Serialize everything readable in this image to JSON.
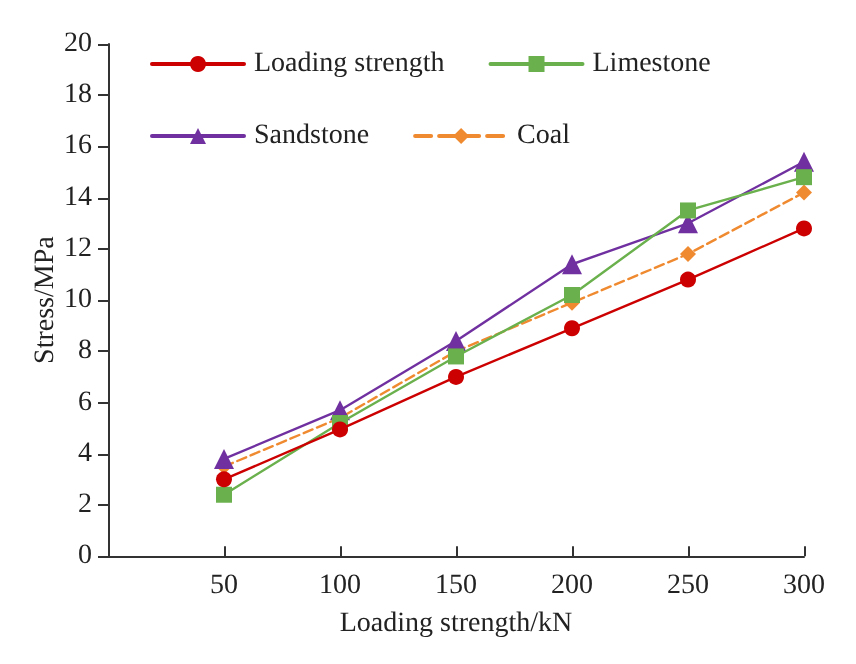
{
  "chart_data": {
    "type": "line",
    "xlabel": "Loading strength/kN",
    "ylabel": "Stress/MPa",
    "x": [
      50,
      100,
      150,
      200,
      250,
      300
    ],
    "xlim": [
      0,
      300
    ],
    "xticks": [
      {
        "value": 0,
        "label": null
      },
      50,
      100,
      150,
      200,
      250,
      300
    ],
    "ylim": [
      0,
      20
    ],
    "yticks": [
      0,
      2,
      4,
      6,
      8,
      10,
      12,
      14,
      16,
      18,
      20
    ],
    "grid": false,
    "legend": "top left",
    "series": [
      {
        "name": "Loading strength",
        "color": "#cc0000",
        "marker": "circle",
        "line_style": "solid",
        "values": [
          3.0,
          4.95,
          7.0,
          8.9,
          10.8,
          12.8
        ]
      },
      {
        "name": "Limestone",
        "color": "#6ab04c",
        "marker": "square",
        "line_style": "solid",
        "values": [
          2.4,
          5.2,
          7.8,
          10.2,
          13.5,
          14.8
        ]
      },
      {
        "name": "Sandstone",
        "color": "#7030a0",
        "marker": "triangle",
        "line_style": "solid",
        "values": [
          3.8,
          5.7,
          8.4,
          11.4,
          13.0,
          15.4
        ]
      },
      {
        "name": "Coal",
        "color": "#f08a30",
        "marker": "diamond",
        "line_style": "dashed",
        "values": [
          3.5,
          5.4,
          8.0,
          9.9,
          11.8,
          14.2
        ]
      }
    ]
  }
}
